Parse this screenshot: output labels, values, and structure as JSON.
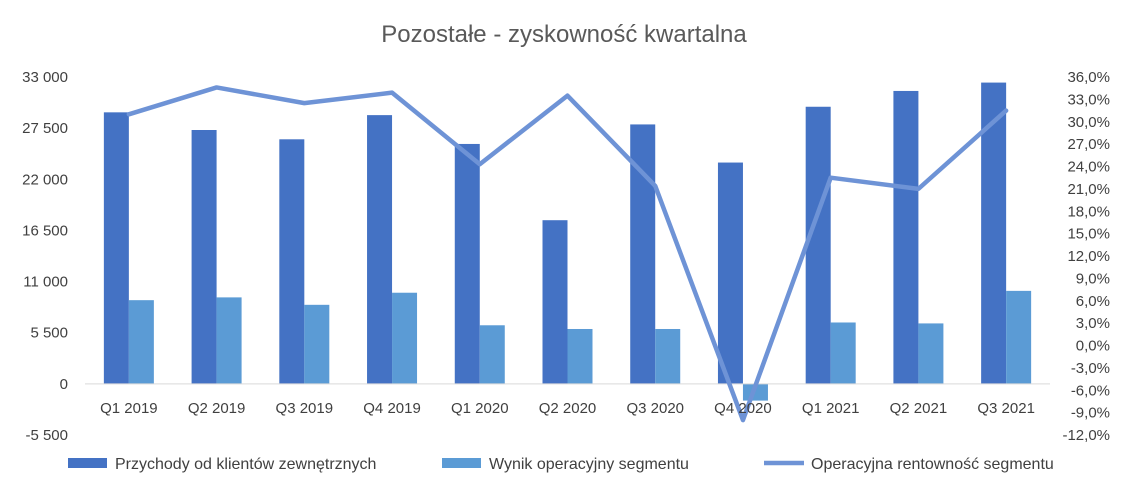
{
  "chart_data": {
    "type": "bar",
    "title": "Pozostałe - zyskowność kwartalna",
    "categories": [
      "Q1 2019",
      "Q2 2019",
      "Q3 2019",
      "Q4 2019",
      "Q1 2020",
      "Q2 2020",
      "Q3 2020",
      "Q4 2020",
      "Q1 2021",
      "Q2 2021",
      "Q3 2021"
    ],
    "series": [
      {
        "name": "Przychody od klientów zewnętrznych",
        "type": "bar",
        "axis": "left",
        "color": "#4472C4",
        "values": [
          29200,
          27300,
          26300,
          28900,
          25800,
          17600,
          27900,
          23800,
          29800,
          31500,
          32400
        ]
      },
      {
        "name": "Wynik operacyjny segmentu",
        "type": "bar",
        "axis": "left",
        "color": "#5B9BD5",
        "values": [
          9000,
          9300,
          8500,
          9800,
          6300,
          5900,
          5900,
          -1800,
          6600,
          6500,
          10000
        ]
      },
      {
        "name": "Operacyjna rentowność segmentu",
        "type": "line",
        "axis": "right",
        "color": "#6E93D6",
        "values": [
          31.0,
          34.6,
          32.5,
          33.9,
          24.3,
          33.5,
          21.4,
          -10.0,
          22.5,
          21.0,
          31.5
        ]
      }
    ],
    "y_left": {
      "min": -5500,
      "max": 33000,
      "ticks": [
        -5500,
        0,
        5500,
        11000,
        16500,
        22000,
        27500,
        33000
      ],
      "tick_labels": [
        "-5 500",
        "0",
        "5 500",
        "11 000",
        "16 500",
        "22 000",
        "27 500",
        "33 000"
      ]
    },
    "y_right": {
      "min": -12,
      "max": 36,
      "ticks": [
        -12,
        -9,
        -6,
        -3,
        0,
        3,
        6,
        9,
        12,
        15,
        18,
        21,
        24,
        27,
        30,
        33,
        36
      ],
      "tick_labels": [
        "-12,0%",
        "-9,0%",
        "-6,0%",
        "-3,0%",
        "0,0%",
        "3,0%",
        "6,0%",
        "9,0%",
        "12,0%",
        "15,0%",
        "18,0%",
        "21,0%",
        "24,0%",
        "27,0%",
        "30,0%",
        "33,0%",
        "36,0%"
      ]
    },
    "grid": false,
    "legend_position": "bottom"
  }
}
